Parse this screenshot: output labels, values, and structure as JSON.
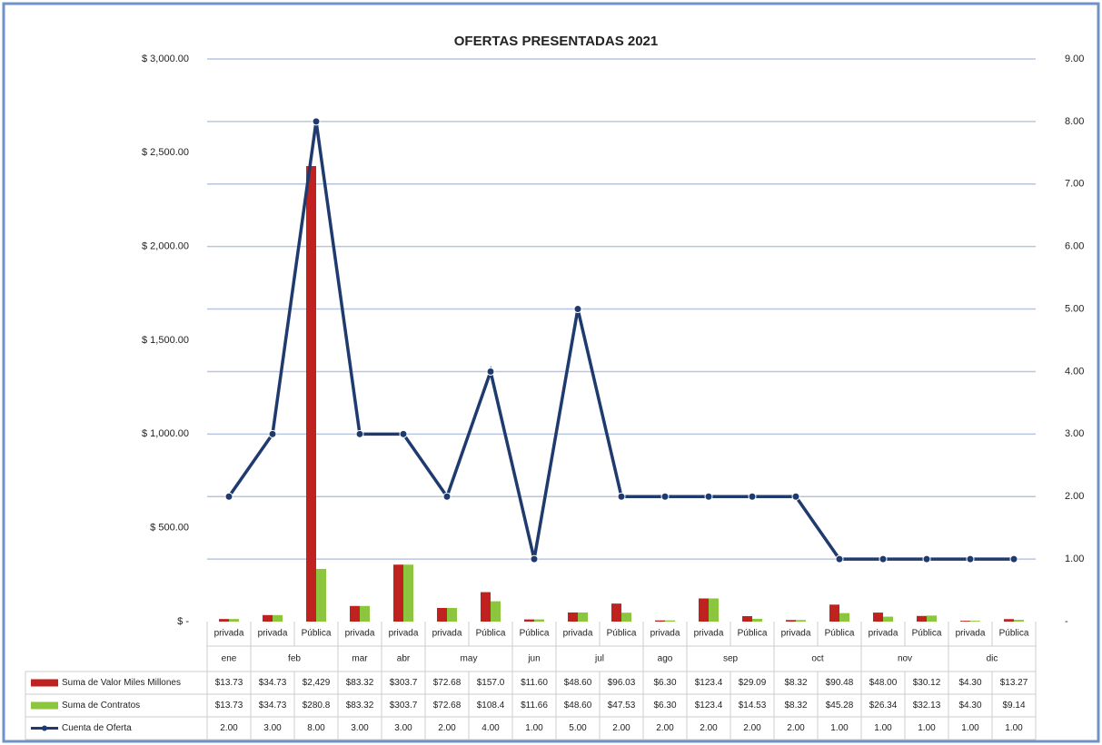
{
  "chart_data": {
    "type": "bar-line",
    "title": "OFERTAS PRESENTADAS 2021",
    "categories": [
      "privada",
      "privada",
      "Pública",
      "privada",
      "privada",
      "privada",
      "Pública",
      "Pública",
      "privada",
      "Pública",
      "privada",
      "privada",
      "Pública",
      "privada",
      "Pública",
      "privada",
      "Pública",
      "privada",
      "Pública"
    ],
    "months": [
      "ene",
      "feb",
      null,
      "mar",
      "abr",
      "may",
      null,
      "jun",
      "jul",
      null,
      "ago",
      "sep",
      null,
      "oct",
      null,
      "nov",
      null,
      "dic",
      null
    ],
    "series": [
      {
        "name": "Suma de Valor Miles Millones",
        "color": "#c0231f",
        "type": "bar",
        "values": [
          13.73,
          34.73,
          2429,
          83.32,
          303.7,
          72.68,
          157.0,
          11.6,
          48.6,
          96.03,
          6.3,
          123.4,
          29.09,
          8.32,
          90.48,
          48.0,
          30.12,
          4.3,
          13.27
        ],
        "value_labels": [
          "$13.73",
          "$34.73",
          "$2,429",
          "$83.32",
          "$303.7",
          "$72.68",
          "$157.0",
          "$11.60",
          "$48.60",
          "$96.03",
          "$6.30",
          "$123.4",
          "$29.09",
          "$8.32",
          "$90.48",
          "$48.00",
          "$30.12",
          "$4.30",
          "$13.27"
        ]
      },
      {
        "name": "Suma de Contratos",
        "color": "#8cc63f",
        "type": "bar",
        "values": [
          13.73,
          34.73,
          280.8,
          83.32,
          303.7,
          72.68,
          108.4,
          11.66,
          48.6,
          47.53,
          6.3,
          123.4,
          14.53,
          8.32,
          45.28,
          26.34,
          32.13,
          4.3,
          9.14
        ],
        "value_labels": [
          "$13.73",
          "$34.73",
          "$280.8",
          "$83.32",
          "$303.7",
          "$72.68",
          "$108.4",
          "$11.66",
          "$48.60",
          "$47.53",
          "$6.30",
          "$123.4",
          "$14.53",
          "$8.32",
          "$45.28",
          "$26.34",
          "$32.13",
          "$4.30",
          "$9.14"
        ]
      },
      {
        "name": "Cuenta de Oferta",
        "color": "#1f3a6e",
        "type": "line",
        "axis": "y2",
        "values": [
          2,
          3,
          8,
          3,
          3,
          2,
          4,
          1,
          5,
          2,
          2,
          2,
          2,
          2,
          1,
          1,
          1,
          1,
          1
        ],
        "value_labels": [
          "2.00",
          "3.00",
          "8.00",
          "3.00",
          "3.00",
          "2.00",
          "4.00",
          "1.00",
          "5.00",
          "2.00",
          "2.00",
          "2.00",
          "2.00",
          "2.00",
          "1.00",
          "1.00",
          "1.00",
          "1.00",
          "1.00"
        ]
      }
    ],
    "ylim": [
      0,
      3000
    ],
    "yticks": [
      {
        "value": 0,
        "label": "$ -"
      },
      {
        "value": 500,
        "label": "$ 500.00"
      },
      {
        "value": 1000,
        "label": "$ 1,000.00"
      },
      {
        "value": 1500,
        "label": "$ 1,500.00"
      },
      {
        "value": 2000,
        "label": "$ 2,000.00"
      },
      {
        "value": 2500,
        "label": "$ 2,500.00"
      },
      {
        "value": 3000,
        "label": "$ 3,000.00"
      }
    ],
    "y2lim": [
      0,
      9
    ],
    "y2ticks": [
      {
        "value": 0,
        "label": "-"
      },
      {
        "value": 1,
        "label": "1.00"
      },
      {
        "value": 2,
        "label": "2.00"
      },
      {
        "value": 3,
        "label": "3.00"
      },
      {
        "value": 4,
        "label": "4.00"
      },
      {
        "value": 5,
        "label": "5.00"
      },
      {
        "value": 6,
        "label": "6.00"
      },
      {
        "value": 7,
        "label": "7.00"
      },
      {
        "value": 8,
        "label": "8.00"
      },
      {
        "value": 9,
        "label": "9.00"
      }
    ],
    "grid": true
  }
}
